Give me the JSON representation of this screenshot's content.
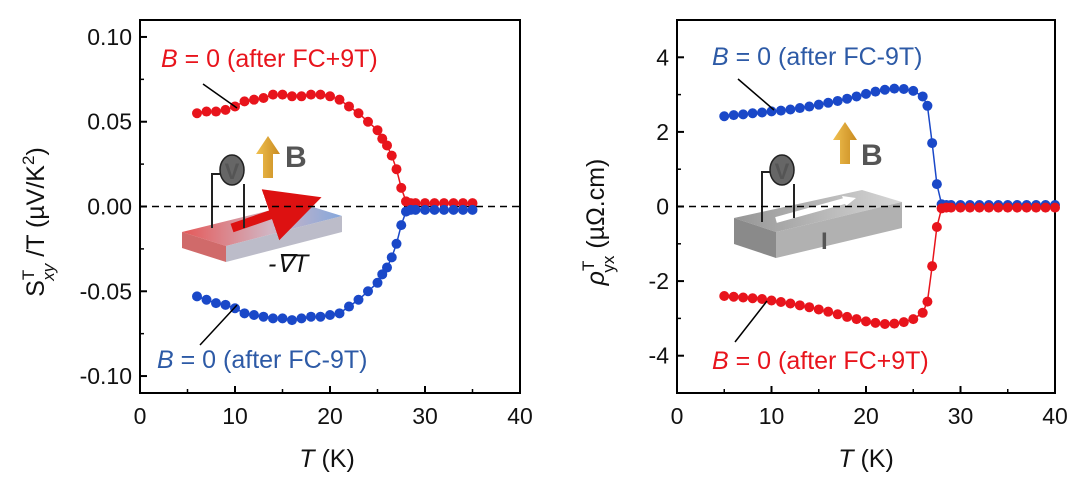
{
  "chart_data": [
    {
      "type": "scatter",
      "xlabel_var": "T",
      "xlabel_unit": " (K)",
      "ylabel_main": "S",
      "ylabel_sup": "T",
      "ylabel_sub": "xy",
      "ylabel_rest": " /T (µV/K",
      "ylabel_sup2": "2",
      "ylabel_close": ")",
      "xlim": [
        0,
        40
      ],
      "ylim": [
        -0.11,
        0.11
      ],
      "xticks": [
        "0",
        "10",
        "20",
        "30",
        "40"
      ],
      "yticks": [
        "-0.10",
        "-0.05",
        "0.00",
        "0.05",
        "0.10"
      ],
      "ytick_values": [
        -0.1,
        -0.05,
        0.0,
        0.05,
        0.1
      ],
      "annotations": [
        {
          "var": "B",
          "text": " = 0 (after FC+9T)",
          "color": "#e8141c"
        },
        {
          "var": "B",
          "text": " = 0 (after FC-9T)",
          "color": "#2d5aa6"
        }
      ],
      "inset_labels": {
        "voltmeter": "V",
        "field": "B",
        "gradient": "-∇T"
      },
      "series": [
        {
          "name": "B = 0 (after FC+9T)",
          "color": "#e8141c",
          "x": [
            6,
            7,
            8,
            9,
            10,
            11,
            12,
            13,
            14,
            15,
            16,
            17,
            18,
            19,
            20,
            21,
            22,
            23,
            24,
            25,
            25.5,
            26,
            26.5,
            27,
            27.5,
            28,
            28.5,
            29,
            30,
            31,
            32,
            33,
            34,
            35
          ],
          "y": [
            0.055,
            0.056,
            0.056,
            0.057,
            0.059,
            0.062,
            0.063,
            0.064,
            0.066,
            0.066,
            0.065,
            0.065,
            0.066,
            0.066,
            0.065,
            0.063,
            0.059,
            0.055,
            0.05,
            0.045,
            0.04,
            0.036,
            0.03,
            0.022,
            0.011,
            0.003,
            0.002,
            0.002,
            0.002,
            0.002,
            0.002,
            0.002,
            0.002,
            0.002
          ]
        },
        {
          "name": "B = 0 (after FC-9T)",
          "color": "#1a48c8",
          "x": [
            6,
            7,
            8,
            9,
            10,
            11,
            12,
            13,
            14,
            15,
            16,
            17,
            18,
            19,
            20,
            21,
            22,
            23,
            24,
            25,
            25.5,
            26,
            26.5,
            27,
            27.5,
            28,
            28.5,
            29,
            30,
            31,
            32,
            33,
            34,
            35
          ],
          "y": [
            -0.053,
            -0.055,
            -0.057,
            -0.058,
            -0.06,
            -0.063,
            -0.064,
            -0.065,
            -0.066,
            -0.066,
            -0.067,
            -0.066,
            -0.065,
            -0.065,
            -0.064,
            -0.063,
            -0.059,
            -0.055,
            -0.05,
            -0.045,
            -0.04,
            -0.036,
            -0.03,
            -0.022,
            -0.011,
            -0.003,
            -0.002,
            -0.002,
            -0.002,
            -0.002,
            -0.002,
            -0.002,
            -0.002,
            -0.002
          ]
        }
      ]
    },
    {
      "type": "scatter",
      "xlabel_var": "T",
      "xlabel_unit": " (K)",
      "ylabel_main": "ρ",
      "ylabel_sup": "T",
      "ylabel_sub": "yx",
      "ylabel_rest": " (µΩ.cm)",
      "xlim": [
        0,
        40
      ],
      "ylim": [
        -5,
        5
      ],
      "xticks": [
        "0",
        "10",
        "20",
        "30",
        "40"
      ],
      "yticks": [
        "-4",
        "-2",
        "0",
        "2",
        "4"
      ],
      "ytick_values": [
        -4,
        -2,
        0,
        2,
        4
      ],
      "annotations": [
        {
          "var": "B",
          "text": " = 0 (after FC-9T)",
          "color": "#2d5aa6"
        },
        {
          "var": "B",
          "text": " = 0 (after FC+9T)",
          "color": "#e8141c"
        }
      ],
      "inset_labels": {
        "voltmeter": "V",
        "field": "B",
        "current": "I"
      },
      "series": [
        {
          "name": "B = 0 (after FC-9T)",
          "color": "#1a48c8",
          "x": [
            5,
            6,
            7,
            8,
            9,
            10,
            11,
            12,
            13,
            14,
            15,
            16,
            17,
            18,
            19,
            20,
            21,
            22,
            23,
            24,
            25,
            26,
            26.5,
            27,
            27.5,
            28,
            28.5,
            29,
            30,
            31,
            32,
            33,
            34,
            35,
            36,
            37,
            38,
            39,
            40
          ],
          "y": [
            2.42,
            2.45,
            2.47,
            2.5,
            2.52,
            2.55,
            2.57,
            2.6,
            2.64,
            2.68,
            2.73,
            2.78,
            2.83,
            2.89,
            2.95,
            3.02,
            3.08,
            3.13,
            3.16,
            3.15,
            3.1,
            2.95,
            2.7,
            1.7,
            0.6,
            0.06,
            0.04,
            0.04,
            0.04,
            0.04,
            0.04,
            0.04,
            0.04,
            0.04,
            0.04,
            0.04,
            0.04,
            0.04,
            0.04
          ]
        },
        {
          "name": "B = 0 (after FC+9T)",
          "color": "#e8141c",
          "x": [
            5,
            6,
            7,
            8,
            9,
            10,
            11,
            12,
            13,
            14,
            15,
            16,
            17,
            18,
            19,
            20,
            21,
            22,
            23,
            24,
            25,
            26,
            26.5,
            27,
            27.5,
            28,
            28.5,
            29,
            30,
            31,
            32,
            33,
            34,
            35,
            36,
            37,
            38,
            39,
            40
          ],
          "y": [
            -2.4,
            -2.42,
            -2.44,
            -2.46,
            -2.48,
            -2.52,
            -2.56,
            -2.6,
            -2.65,
            -2.7,
            -2.76,
            -2.82,
            -2.89,
            -2.96,
            -3.02,
            -3.08,
            -3.12,
            -3.15,
            -3.14,
            -3.1,
            -3.02,
            -2.85,
            -2.55,
            -1.6,
            -0.55,
            -0.05,
            -0.03,
            -0.03,
            -0.03,
            -0.03,
            -0.03,
            -0.03,
            -0.03,
            -0.03,
            -0.03,
            -0.03,
            -0.03,
            -0.03,
            -0.03
          ]
        }
      ]
    }
  ]
}
